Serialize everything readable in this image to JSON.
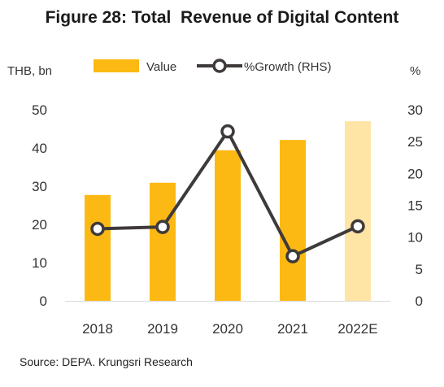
{
  "chart_data": {
    "type": "bar",
    "title": "Figure 28: Total  Revenue of Digital Content",
    "categories": [
      "2018",
      "2019",
      "2020",
      "2021",
      "2022E"
    ],
    "series": [
      {
        "name": "Value",
        "type": "bar",
        "axis": "left",
        "values": [
          27.7,
          30.9,
          39.4,
          42.1,
          47.0
        ],
        "color": "#FDB913",
        "highlight": {
          "index": 4,
          "color": "#FEE4A5"
        }
      },
      {
        "name": "%Growth (RHS)",
        "type": "line",
        "axis": "right",
        "values": [
          11.3,
          11.6,
          26.6,
          7.0,
          11.7
        ],
        "color": "#3F3A3A"
      }
    ],
    "ylabel_left": "THB, bn",
    "ylabel_right": "%",
    "ylim_left": [
      0,
      50
    ],
    "ylim_right": [
      0,
      30
    ],
    "yticks_left": [
      "0",
      "10",
      "20",
      "30",
      "40",
      "50"
    ],
    "yticks_right": [
      "0",
      "5",
      "10",
      "15",
      "20",
      "25",
      "30"
    ],
    "grid": false,
    "legend_position": "top"
  },
  "source": "Source: DEPA. Krungsri Research"
}
